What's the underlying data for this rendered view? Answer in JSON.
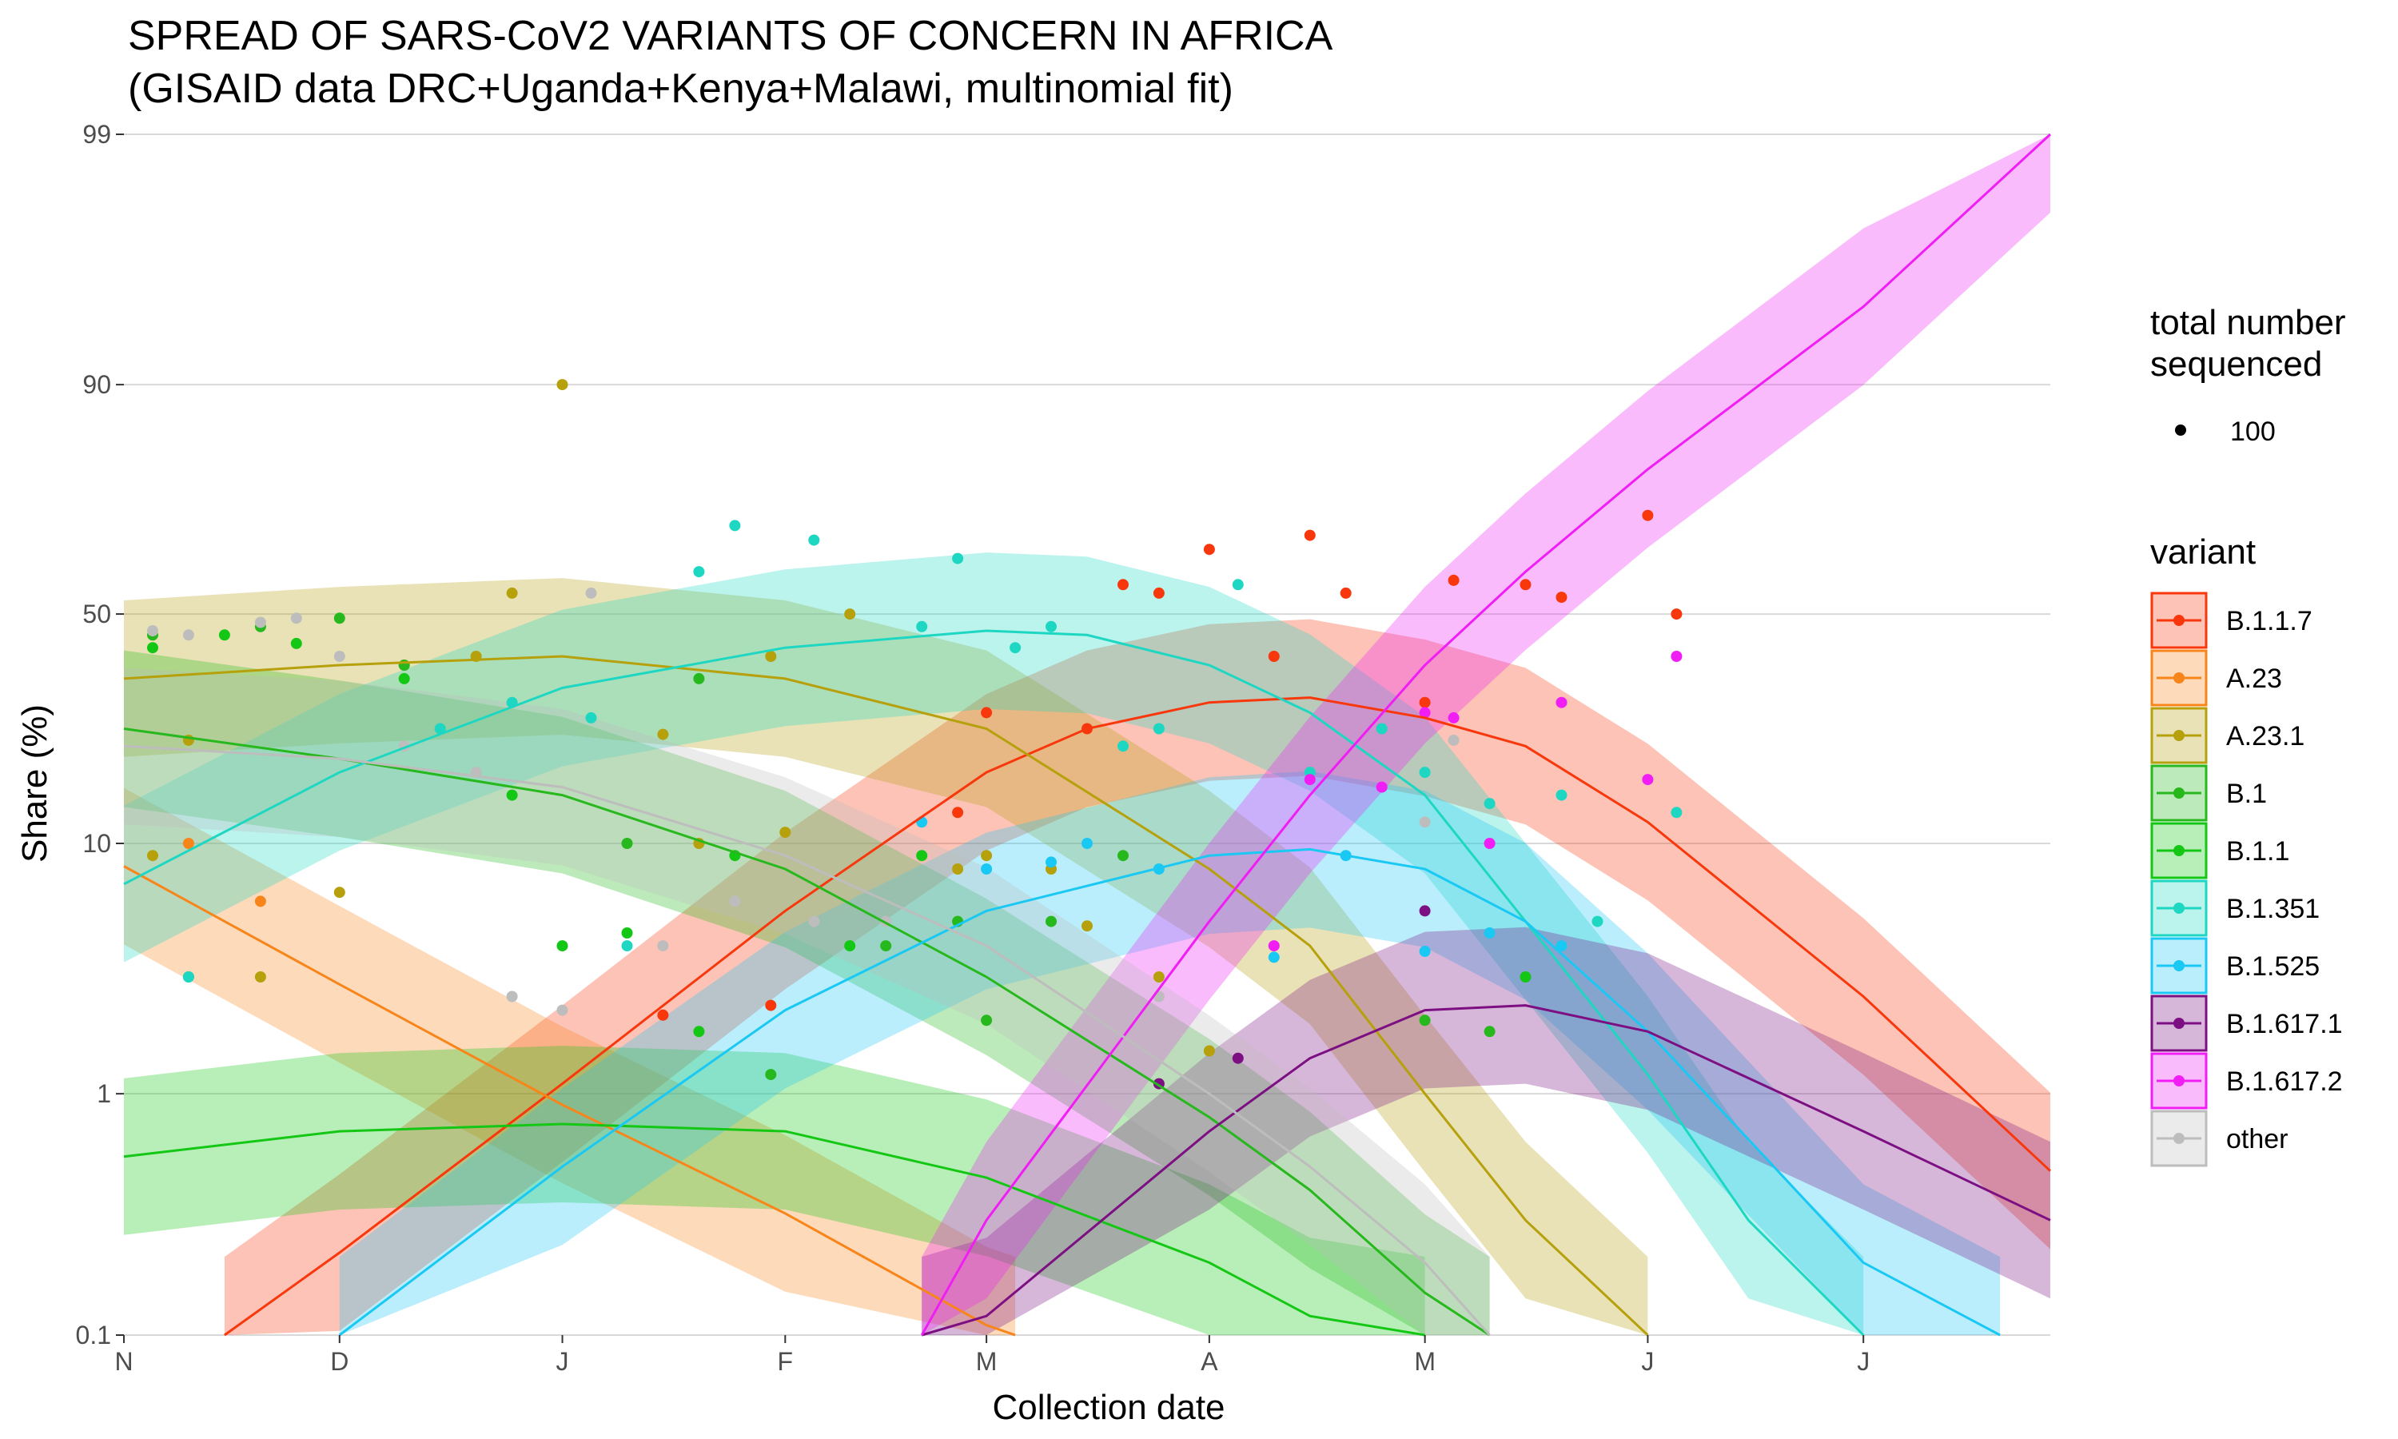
{
  "chart_data": {
    "type": "line",
    "title": "SPREAD OF SARS-CoV2 VARIANTS OF CONCERN IN AFRICA",
    "subtitle": "(GISAID data DRC+Uganda+Kenya+Malawi, multinomial fit)",
    "xlabel": "Collection date",
    "ylabel": "Share (%)",
    "x_range": [
      "2020-11-01",
      "2021-07-27"
    ],
    "y_scale": "logit",
    "ylim": [
      0.1,
      99
    ],
    "y_ticks": [
      0.1,
      1,
      10,
      50,
      90,
      99
    ],
    "y_tick_labels": [
      "0.1",
      "1",
      "10",
      "50",
      "90",
      "99"
    ],
    "x_ticks": [
      "2020-11-01",
      "2020-12-01",
      "2021-01-01",
      "2021-02-01",
      "2021-03-01",
      "2021-04-01",
      "2021-05-01",
      "2021-06-01",
      "2021-07-01"
    ],
    "x_tick_labels": [
      "N",
      "D",
      "J",
      "F",
      "M",
      "A",
      "M",
      "J",
      "J"
    ],
    "grid": true,
    "size_legend": {
      "title_line1": "total number",
      "title_line2": "sequenced",
      "label": "100"
    },
    "legend_title": "variant",
    "legend_position": "right",
    "series": [
      {
        "name": "B.1.1.7",
        "color": "#F8370C",
        "fit": [
          [
            "2020-11-15",
            0.1
          ],
          [
            "2020-12-01",
            0.22
          ],
          [
            "2021-01-01",
            1.1
          ],
          [
            "2021-02-01",
            5.5
          ],
          [
            "2021-03-01",
            18
          ],
          [
            "2021-03-15",
            25
          ],
          [
            "2021-04-01",
            30
          ],
          [
            "2021-04-15",
            31
          ],
          [
            "2021-05-01",
            27
          ],
          [
            "2021-05-15",
            22
          ],
          [
            "2021-06-01",
            12
          ],
          [
            "2021-07-01",
            2.5
          ],
          [
            "2021-07-27",
            0.48
          ]
        ],
        "points": [
          [
            "2021-01-15",
            2.1
          ],
          [
            "2021-01-30",
            2.3
          ],
          [
            "2021-02-25",
            13
          ],
          [
            "2021-03-01",
            28
          ],
          [
            "2021-03-15",
            25
          ],
          [
            "2021-03-20",
            57
          ],
          [
            "2021-03-25",
            55
          ],
          [
            "2021-04-01",
            65
          ],
          [
            "2021-04-10",
            40
          ],
          [
            "2021-04-15",
            68
          ],
          [
            "2021-04-20",
            55
          ],
          [
            "2021-05-01",
            30
          ],
          [
            "2021-05-05",
            58
          ],
          [
            "2021-05-15",
            57
          ],
          [
            "2021-05-20",
            54
          ],
          [
            "2021-06-01",
            72
          ],
          [
            "2021-06-05",
            50
          ]
        ]
      },
      {
        "name": "A.23",
        "color": "#F8851A",
        "fit": [
          [
            "2020-11-01",
            8.2
          ],
          [
            "2020-12-01",
            2.8
          ],
          [
            "2021-01-01",
            0.9
          ],
          [
            "2021-02-01",
            0.32
          ],
          [
            "2021-03-01",
            0.11
          ],
          [
            "2021-03-05",
            0.1
          ]
        ],
        "points": [
          [
            "2020-11-10",
            10
          ],
          [
            "2020-11-20",
            6
          ]
        ]
      },
      {
        "name": "A.23.1",
        "color": "#B6A00C",
        "fit": [
          [
            "2020-11-01",
            35
          ],
          [
            "2020-12-01",
            38
          ],
          [
            "2021-01-01",
            40
          ],
          [
            "2021-02-01",
            35
          ],
          [
            "2021-03-01",
            25
          ],
          [
            "2021-04-01",
            8
          ],
          [
            "2021-04-15",
            4
          ],
          [
            "2021-05-01",
            1
          ],
          [
            "2021-05-15",
            0.3
          ],
          [
            "2021-06-01",
            0.1
          ]
        ],
        "points": [
          [
            "2020-11-05",
            9
          ],
          [
            "2020-11-10",
            23
          ],
          [
            "2020-11-20",
            3
          ],
          [
            "2020-12-01",
            6.5
          ],
          [
            "2020-12-10",
            38
          ],
          [
            "2020-12-20",
            40
          ],
          [
            "2020-12-25",
            55
          ],
          [
            "2021-01-01",
            90
          ],
          [
            "2021-01-15",
            24
          ],
          [
            "2021-01-20",
            10
          ],
          [
            "2021-01-30",
            40
          ],
          [
            "2021-02-01",
            11
          ],
          [
            "2021-02-10",
            50
          ],
          [
            "2021-02-25",
            8
          ],
          [
            "2021-03-01",
            9
          ],
          [
            "2021-03-10",
            8
          ],
          [
            "2021-03-15",
            4.8
          ],
          [
            "2021-03-25",
            3
          ],
          [
            "2021-04-01",
            1.5
          ]
        ]
      },
      {
        "name": "B.1",
        "color": "#26B81C",
        "fit": [
          [
            "2020-11-01",
            25
          ],
          [
            "2020-12-01",
            20
          ],
          [
            "2021-01-01",
            15
          ],
          [
            "2021-02-01",
            8
          ],
          [
            "2021-03-01",
            3
          ],
          [
            "2021-04-01",
            0.8
          ],
          [
            "2021-04-15",
            0.4
          ],
          [
            "2021-05-01",
            0.15
          ],
          [
            "2021-05-10",
            0.1
          ]
        ],
        "points": [
          [
            "2020-11-05",
            45
          ],
          [
            "2020-11-10",
            3
          ],
          [
            "2020-11-20",
            47
          ],
          [
            "2020-12-01",
            49
          ],
          [
            "2020-12-10",
            38
          ],
          [
            "2021-01-10",
            10
          ],
          [
            "2021-01-20",
            35
          ],
          [
            "2021-01-30",
            1.2
          ],
          [
            "2021-02-15",
            4
          ],
          [
            "2021-02-25",
            5
          ],
          [
            "2021-03-01",
            2
          ],
          [
            "2021-03-10",
            5
          ],
          [
            "2021-03-20",
            9
          ],
          [
            "2021-05-01",
            2
          ],
          [
            "2021-05-10",
            1.8
          ]
        ]
      },
      {
        "name": "B.1.1",
        "color": "#14C714",
        "fit": [
          [
            "2020-11-01",
            0.55
          ],
          [
            "2020-12-01",
            0.7
          ],
          [
            "2021-01-01",
            0.75
          ],
          [
            "2021-02-01",
            0.7
          ],
          [
            "2021-03-01",
            0.45
          ],
          [
            "2021-04-01",
            0.2
          ],
          [
            "2021-04-15",
            0.12
          ],
          [
            "2021-05-01",
            0.1
          ]
        ],
        "points": [
          [
            "2020-11-05",
            42
          ],
          [
            "2020-11-15",
            45
          ],
          [
            "2020-11-25",
            43
          ],
          [
            "2020-12-10",
            35
          ],
          [
            "2020-12-25",
            15
          ],
          [
            "2021-01-01",
            4
          ],
          [
            "2021-01-10",
            4.5
          ],
          [
            "2021-01-20",
            1.8
          ],
          [
            "2021-01-25",
            9
          ],
          [
            "2021-02-10",
            4
          ],
          [
            "2021-02-20",
            9
          ],
          [
            "2021-05-15",
            3
          ]
        ]
      },
      {
        "name": "B.1.351",
        "color": "#1ED7C2",
        "fit": [
          [
            "2020-11-01",
            7
          ],
          [
            "2020-12-01",
            18
          ],
          [
            "2021-01-01",
            33
          ],
          [
            "2021-02-01",
            42
          ],
          [
            "2021-03-01",
            46
          ],
          [
            "2021-03-15",
            45
          ],
          [
            "2021-04-01",
            38
          ],
          [
            "2021-04-15",
            28
          ],
          [
            "2021-05-01",
            15
          ],
          [
            "2021-05-15",
            5
          ],
          [
            "2021-06-01",
            1.2
          ],
          [
            "2021-06-15",
            0.3
          ],
          [
            "2021-07-01",
            0.1
          ]
        ],
        "points": [
          [
            "2020-11-10",
            3
          ],
          [
            "2020-12-15",
            25
          ],
          [
            "2020-12-25",
            30
          ],
          [
            "2021-01-05",
            27
          ],
          [
            "2021-01-10",
            4
          ],
          [
            "2021-01-20",
            60
          ],
          [
            "2021-01-25",
            70
          ],
          [
            "2021-02-05",
            67
          ],
          [
            "2021-02-20",
            47
          ],
          [
            "2021-02-25",
            63
          ],
          [
            "2021-03-05",
            42
          ],
          [
            "2021-03-10",
            47
          ],
          [
            "2021-03-20",
            22
          ],
          [
            "2021-03-25",
            25
          ],
          [
            "2021-04-05",
            57
          ],
          [
            "2021-04-15",
            18
          ],
          [
            "2021-04-25",
            25
          ],
          [
            "2021-05-01",
            18
          ],
          [
            "2021-05-10",
            14
          ],
          [
            "2021-05-20",
            15
          ],
          [
            "2021-05-25",
            5
          ],
          [
            "2021-06-05",
            13
          ]
        ]
      },
      {
        "name": "B.1.525",
        "color": "#1AC8F4",
        "fit": [
          [
            "2020-12-01",
            0.1
          ],
          [
            "2021-01-01",
            0.5
          ],
          [
            "2021-02-01",
            2.2
          ],
          [
            "2021-03-01",
            5.5
          ],
          [
            "2021-04-01",
            9
          ],
          [
            "2021-04-15",
            9.5
          ],
          [
            "2021-05-01",
            8
          ],
          [
            "2021-05-15",
            5
          ],
          [
            "2021-06-01",
            1.8
          ],
          [
            "2021-07-01",
            0.2
          ],
          [
            "2021-07-20",
            0.1
          ]
        ],
        "points": [
          [
            "2021-02-20",
            12
          ],
          [
            "2021-03-01",
            8
          ],
          [
            "2021-03-10",
            8.5
          ],
          [
            "2021-03-15",
            10
          ],
          [
            "2021-03-25",
            8
          ],
          [
            "2021-04-10",
            3.6
          ],
          [
            "2021-04-20",
            9
          ],
          [
            "2021-05-01",
            3.8
          ],
          [
            "2021-05-10",
            4.5
          ],
          [
            "2021-05-20",
            4
          ]
        ]
      },
      {
        "name": "B.1.617.1",
        "color": "#7C0F82",
        "fit": [
          [
            "2021-02-20",
            0.1
          ],
          [
            "2021-03-01",
            0.12
          ],
          [
            "2021-04-01",
            0.7
          ],
          [
            "2021-04-15",
            1.4
          ],
          [
            "2021-05-01",
            2.2
          ],
          [
            "2021-05-15",
            2.3
          ],
          [
            "2021-06-01",
            1.8
          ],
          [
            "2021-07-01",
            0.7
          ],
          [
            "2021-07-27",
            0.3
          ]
        ],
        "points": [
          [
            "2021-03-25",
            1.1
          ],
          [
            "2021-04-05",
            1.4
          ],
          [
            "2021-05-01",
            5.5
          ]
        ]
      },
      {
        "name": "B.1.617.2",
        "color": "#F01EF4",
        "fit": [
          [
            "2021-02-20",
            0.1
          ],
          [
            "2021-03-01",
            0.3
          ],
          [
            "2021-04-01",
            5
          ],
          [
            "2021-04-15",
            15
          ],
          [
            "2021-05-01",
            38
          ],
          [
            "2021-05-15",
            60
          ],
          [
            "2021-06-01",
            80
          ],
          [
            "2021-07-01",
            95
          ],
          [
            "2021-07-27",
            99
          ]
        ],
        "points": [
          [
            "2021-04-10",
            4
          ],
          [
            "2021-04-15",
            17
          ],
          [
            "2021-04-25",
            16
          ],
          [
            "2021-05-01",
            28
          ],
          [
            "2021-05-05",
            27
          ],
          [
            "2021-05-10",
            10
          ],
          [
            "2021-05-20",
            30
          ],
          [
            "2021-06-01",
            17
          ],
          [
            "2021-06-05",
            40
          ]
        ]
      },
      {
        "name": "other",
        "color": "#BDBDBD",
        "fit": [
          [
            "2020-11-01",
            22
          ],
          [
            "2020-12-01",
            20
          ],
          [
            "2021-01-01",
            16
          ],
          [
            "2021-02-01",
            9
          ],
          [
            "2021-03-01",
            4
          ],
          [
            "2021-04-01",
            1
          ],
          [
            "2021-04-15",
            0.5
          ],
          [
            "2021-05-01",
            0.2
          ],
          [
            "2021-05-10",
            0.1
          ]
        ],
        "points": [
          [
            "2020-11-05",
            46
          ],
          [
            "2020-11-10",
            45
          ],
          [
            "2020-11-20",
            48
          ],
          [
            "2020-11-25",
            49
          ],
          [
            "2020-12-01",
            40
          ],
          [
            "2020-12-10",
            22
          ],
          [
            "2020-12-20",
            18
          ],
          [
            "2020-12-25",
            2.5
          ],
          [
            "2021-01-01",
            2.2
          ],
          [
            "2021-01-05",
            55
          ],
          [
            "2021-01-15",
            4
          ],
          [
            "2021-01-25",
            6
          ],
          [
            "2021-02-05",
            5
          ],
          [
            "2021-02-15",
            5
          ],
          [
            "2021-03-25",
            2.5
          ],
          [
            "2021-05-01",
            12
          ],
          [
            "2021-05-05",
            23
          ]
        ]
      }
    ]
  }
}
